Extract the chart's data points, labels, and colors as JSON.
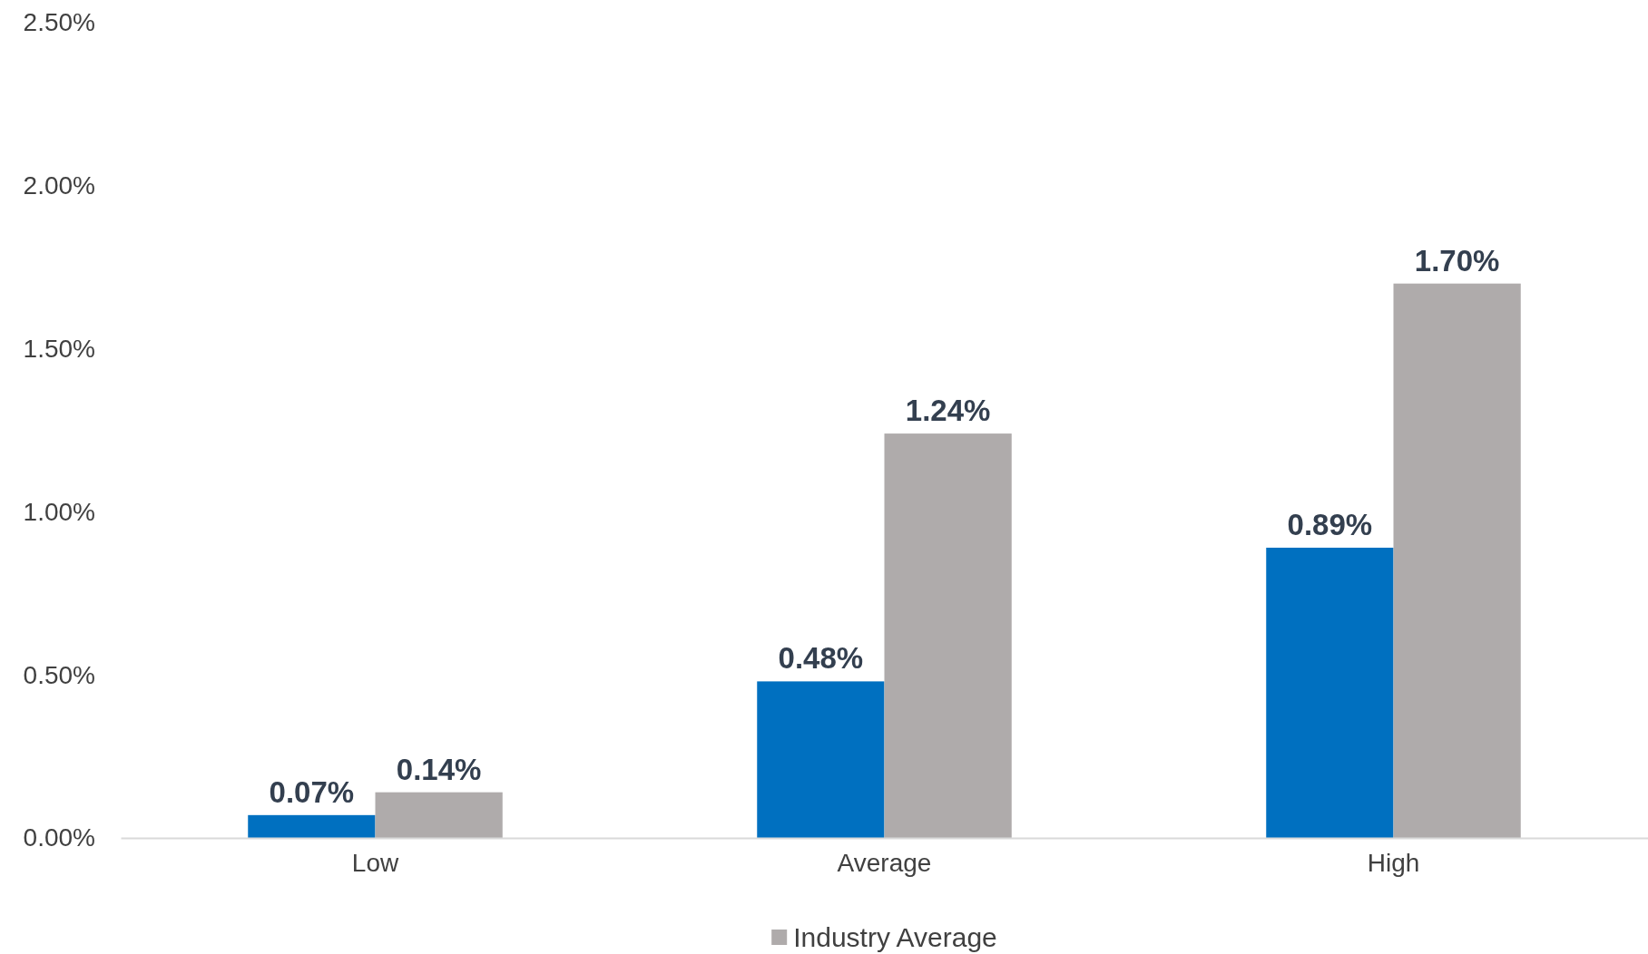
{
  "chart_data": {
    "type": "bar",
    "categories": [
      "Low",
      "Average",
      "High"
    ],
    "series": [
      {
        "color": "#0070c0",
        "values": [
          0.07,
          0.48,
          0.89
        ],
        "value_labels": [
          "0.07%",
          "0.48%",
          "0.89%"
        ]
      },
      {
        "name": "Industry Average",
        "color": "#afabab",
        "values": [
          0.14,
          1.24,
          1.7
        ],
        "value_labels": [
          "0.14%",
          "1.24%",
          "1.70%"
        ]
      }
    ],
    "ylim": [
      0,
      2.5
    ],
    "yticks": [
      {
        "value": 0,
        "label": "0.00%"
      },
      {
        "value": 0.5,
        "label": "0.50%"
      },
      {
        "value": 1,
        "label": "1.00%"
      },
      {
        "value": 1.5,
        "label": "1.50%"
      },
      {
        "value": 2,
        "label": "2.00%"
      },
      {
        "value": 2.5,
        "label": "2.50%"
      }
    ],
    "grid": false,
    "legend": "bottom"
  }
}
